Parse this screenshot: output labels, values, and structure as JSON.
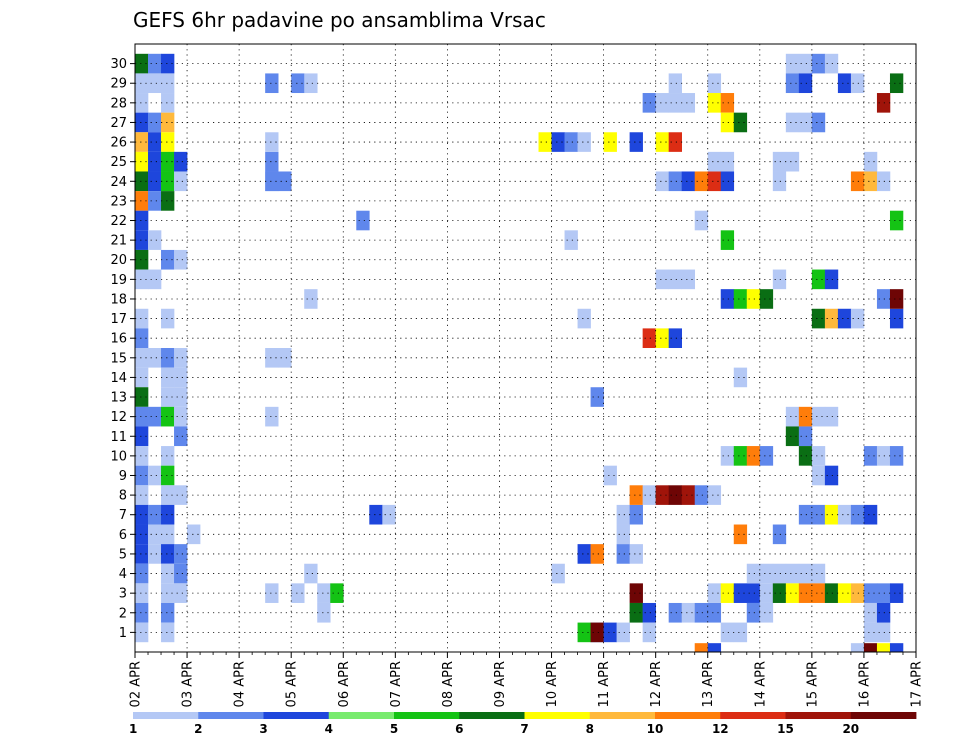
{
  "chart_data": {
    "type": "heatmap",
    "title": "GEFS 6hr padavine po ansamblima Vrsac",
    "x_tick_labels": [
      "02 APR",
      "03 APR",
      "04 APR",
      "05 APR",
      "06 APR",
      "07 APR",
      "08 APR",
      "09 APR",
      "10 APR",
      "11 APR",
      "12 APR",
      "13 APR",
      "14 APR",
      "15 APR",
      "16 APR",
      "17 APR"
    ],
    "x_range": [
      "02 APR 00z",
      "17 APR 00z"
    ],
    "time_step_hours": 6,
    "y_tick_labels": [
      "1",
      "2",
      "3",
      "4",
      "5",
      "6",
      "7",
      "8",
      "9",
      "10",
      "11",
      "12",
      "13",
      "14",
      "15",
      "16",
      "17",
      "18",
      "19",
      "20",
      "21",
      "22",
      "23",
      "24",
      "25",
      "26",
      "27",
      "28",
      "29",
      "30"
    ],
    "y_range": [
      0,
      30
    ],
    "grid": "dotted",
    "colorbar": {
      "placement": "bottom",
      "labels": [
        "1",
        "2",
        "3",
        "4",
        "5",
        "6",
        "7",
        "8",
        "10",
        "12",
        "15",
        "20"
      ],
      "colors": [
        "#b4c8f5",
        "#5f87ec",
        "#1e46dc",
        "#78eb6e",
        "#14c314",
        "#0a6e14",
        "#ffff00",
        "#ffb93c",
        "#ff7d0a",
        "#dc2d14",
        "#a0140a",
        "#6e0505"
      ]
    },
    "cells": [
      {
        "x": 0,
        "y": 30,
        "v": 6
      },
      {
        "x": 1,
        "y": 30,
        "v": 2
      },
      {
        "x": 2,
        "y": 30,
        "v": 3
      },
      {
        "x": 0,
        "y": 29,
        "v": 1
      },
      {
        "x": 1,
        "y": 29,
        "v": 1
      },
      {
        "x": 2,
        "y": 29,
        "v": 1
      },
      {
        "x": 0,
        "y": 28,
        "v": 1
      },
      {
        "x": 2,
        "y": 28,
        "v": 1
      },
      {
        "x": 0,
        "y": 27,
        "v": 3
      },
      {
        "x": 1,
        "y": 27,
        "v": 2
      },
      {
        "x": 2,
        "y": 27,
        "v": 8
      },
      {
        "x": 0,
        "y": 26,
        "v": 8
      },
      {
        "x": 1,
        "y": 26,
        "v": 3
      },
      {
        "x": 2,
        "y": 26,
        "v": 7
      },
      {
        "x": 0,
        "y": 25,
        "v": 7
      },
      {
        "x": 1,
        "y": 25,
        "v": 3
      },
      {
        "x": 2,
        "y": 25,
        "v": 5
      },
      {
        "x": 3,
        "y": 25,
        "v": 3
      },
      {
        "x": 0,
        "y": 24,
        "v": 6
      },
      {
        "x": 1,
        "y": 24,
        "v": 3
      },
      {
        "x": 2,
        "y": 24,
        "v": 5
      },
      {
        "x": 3,
        "y": 24,
        "v": 1
      },
      {
        "x": 0,
        "y": 23,
        "v": 10
      },
      {
        "x": 1,
        "y": 23,
        "v": 2
      },
      {
        "x": 2,
        "y": 23,
        "v": 6
      },
      {
        "x": 0,
        "y": 22,
        "v": 3
      },
      {
        "x": 0,
        "y": 21,
        "v": 3
      },
      {
        "x": 1,
        "y": 21,
        "v": 1
      },
      {
        "x": 0,
        "y": 20,
        "v": 6
      },
      {
        "x": 2,
        "y": 20,
        "v": 2
      },
      {
        "x": 3,
        "y": 20,
        "v": 1
      },
      {
        "x": 0,
        "y": 19,
        "v": 1
      },
      {
        "x": 1,
        "y": 19,
        "v": 1
      },
      {
        "x": 0,
        "y": 17,
        "v": 1
      },
      {
        "x": 2,
        "y": 17,
        "v": 1
      },
      {
        "x": 0,
        "y": 16,
        "v": 2
      },
      {
        "x": 0,
        "y": 15,
        "v": 1
      },
      {
        "x": 1,
        "y": 15,
        "v": 1
      },
      {
        "x": 2,
        "y": 15,
        "v": 2
      },
      {
        "x": 3,
        "y": 15,
        "v": 1
      },
      {
        "x": 0,
        "y": 14,
        "v": 1
      },
      {
        "x": 2,
        "y": 14,
        "v": 1
      },
      {
        "x": 3,
        "y": 14,
        "v": 1
      },
      {
        "x": 0,
        "y": 13,
        "v": 6
      },
      {
        "x": 2,
        "y": 13,
        "v": 1
      },
      {
        "x": 3,
        "y": 13,
        "v": 1
      },
      {
        "x": 0,
        "y": 12,
        "v": 2
      },
      {
        "x": 1,
        "y": 12,
        "v": 2
      },
      {
        "x": 2,
        "y": 12,
        "v": 5
      },
      {
        "x": 3,
        "y": 12,
        "v": 1
      },
      {
        "x": 0,
        "y": 11,
        "v": 3
      },
      {
        "x": 3,
        "y": 11,
        "v": 2
      },
      {
        "x": 0,
        "y": 10,
        "v": 1
      },
      {
        "x": 2,
        "y": 10,
        "v": 1
      },
      {
        "x": 0,
        "y": 9,
        "v": 2
      },
      {
        "x": 1,
        "y": 9,
        "v": 1
      },
      {
        "x": 2,
        "y": 9,
        "v": 5
      },
      {
        "x": 0,
        "y": 8,
        "v": 1
      },
      {
        "x": 2,
        "y": 8,
        "v": 1
      },
      {
        "x": 3,
        "y": 8,
        "v": 1
      },
      {
        "x": 0,
        "y": 7,
        "v": 3
      },
      {
        "x": 1,
        "y": 7,
        "v": 2
      },
      {
        "x": 2,
        "y": 7,
        "v": 3
      },
      {
        "x": 0,
        "y": 6,
        "v": 3
      },
      {
        "x": 1,
        "y": 6,
        "v": 1
      },
      {
        "x": 2,
        "y": 6,
        "v": 1
      },
      {
        "x": 4,
        "y": 6,
        "v": 1
      },
      {
        "x": 0,
        "y": 5,
        "v": 3
      },
      {
        "x": 1,
        "y": 5,
        "v": 1
      },
      {
        "x": 2,
        "y": 5,
        "v": 3
      },
      {
        "x": 3,
        "y": 5,
        "v": 2
      },
      {
        "x": 0,
        "y": 4,
        "v": 2
      },
      {
        "x": 2,
        "y": 4,
        "v": 1
      },
      {
        "x": 3,
        "y": 4,
        "v": 2
      },
      {
        "x": 0,
        "y": 3,
        "v": 1
      },
      {
        "x": 2,
        "y": 3,
        "v": 1
      },
      {
        "x": 3,
        "y": 3,
        "v": 1
      },
      {
        "x": 0,
        "y": 2,
        "v": 2
      },
      {
        "x": 2,
        "y": 2,
        "v": 2
      },
      {
        "x": 0,
        "y": 1,
        "v": 1
      },
      {
        "x": 2,
        "y": 1,
        "v": 1
      },
      {
        "x": 10,
        "y": 24,
        "v": 1
      },
      {
        "x": 11,
        "y": 24,
        "v": 2
      },
      {
        "x": 10,
        "y": 15,
        "v": 1
      },
      {
        "x": 11,
        "y": 15,
        "v": 1
      },
      {
        "x": 10,
        "y": 29,
        "v": 2
      },
      {
        "x": 10,
        "y": 25,
        "v": 2
      },
      {
        "x": 10,
        "y": 26,
        "v": 1
      },
      {
        "x": 10,
        "y": 24,
        "v": 2
      },
      {
        "x": 10,
        "y": 12,
        "v": 1
      },
      {
        "x": 10,
        "y": 3,
        "v": 1
      },
      {
        "x": 13,
        "y": 18,
        "v": 1
      },
      {
        "x": 13,
        "y": 4,
        "v": 1
      },
      {
        "x": 12,
        "y": 3,
        "v": 1
      },
      {
        "x": 12,
        "y": 29,
        "v": 2
      },
      {
        "x": 13,
        "y": 29,
        "v": 1
      },
      {
        "x": 14,
        "y": 3,
        "v": 1
      },
      {
        "x": 15,
        "y": 3,
        "v": 5
      },
      {
        "x": 14,
        "y": 2,
        "v": 1
      },
      {
        "x": 17,
        "y": 22,
        "v": 2
      },
      {
        "x": 18,
        "y": 7,
        "v": 3
      },
      {
        "x": 19,
        "y": 7,
        "v": 1
      },
      {
        "x": 31,
        "y": 26,
        "v": 7
      },
      {
        "x": 32,
        "y": 26,
        "v": 3
      },
      {
        "x": 33,
        "y": 26,
        "v": 2
      },
      {
        "x": 34,
        "y": 26,
        "v": 1
      },
      {
        "x": 36,
        "y": 26,
        "v": 7
      },
      {
        "x": 38,
        "y": 26,
        "v": 3
      },
      {
        "x": 40,
        "y": 26,
        "v": 7
      },
      {
        "x": 41,
        "y": 26,
        "v": 14
      },
      {
        "x": 33,
        "y": 21,
        "v": 1
      },
      {
        "x": 32,
        "y": 4,
        "v": 1
      },
      {
        "x": 34,
        "y": 17,
        "v": 1
      },
      {
        "x": 35,
        "y": 13,
        "v": 2
      },
      {
        "x": 35,
        "y": 1,
        "v": 2
      },
      {
        "x": 34,
        "y": 1,
        "v": 5
      },
      {
        "x": 35,
        "y": 1,
        "v": 20
      },
      {
        "x": 36,
        "y": 1,
        "v": 3
      },
      {
        "x": 37,
        "y": 1,
        "v": 1
      },
      {
        "x": 34,
        "y": 5,
        "v": 3
      },
      {
        "x": 35,
        "y": 5,
        "v": 10
      },
      {
        "x": 36,
        "y": 9,
        "v": 1
      },
      {
        "x": 37,
        "y": 7,
        "v": 1
      },
      {
        "x": 38,
        "y": 7,
        "v": 2
      },
      {
        "x": 37,
        "y": 6,
        "v": 1
      },
      {
        "x": 37,
        "y": 5,
        "v": 2
      },
      {
        "x": 38,
        "y": 5,
        "v": 1
      },
      {
        "x": 38,
        "y": 3,
        "v": 20
      },
      {
        "x": 38,
        "y": 2,
        "v": 6
      },
      {
        "x": 39,
        "y": 2,
        "v": 3
      },
      {
        "x": 39,
        "y": 1,
        "v": 1
      },
      {
        "x": 38,
        "y": 8,
        "v": 10
      },
      {
        "x": 39,
        "y": 8,
        "v": 1
      },
      {
        "x": 40,
        "y": 8,
        "v": 15
      },
      {
        "x": 41,
        "y": 8,
        "v": 20
      },
      {
        "x": 42,
        "y": 8,
        "v": 15
      },
      {
        "x": 43,
        "y": 8,
        "v": 2
      },
      {
        "x": 44,
        "y": 8,
        "v": 1
      },
      {
        "x": 39,
        "y": 16,
        "v": 12
      },
      {
        "x": 40,
        "y": 16,
        "v": 7
      },
      {
        "x": 41,
        "y": 16,
        "v": 3
      },
      {
        "x": 39,
        "y": 28,
        "v": 2
      },
      {
        "x": 40,
        "y": 28,
        "v": 1
      },
      {
        "x": 41,
        "y": 28,
        "v": 1
      },
      {
        "x": 42,
        "y": 28,
        "v": 1
      },
      {
        "x": 41,
        "y": 29,
        "v": 1
      },
      {
        "x": 40,
        "y": 19,
        "v": 1
      },
      {
        "x": 41,
        "y": 19,
        "v": 1
      },
      {
        "x": 42,
        "y": 19,
        "v": 1
      },
      {
        "x": 40,
        "y": 24,
        "v": 1
      },
      {
        "x": 41,
        "y": 24,
        "v": 2
      },
      {
        "x": 42,
        "y": 24,
        "v": 3
      },
      {
        "x": 43,
        "y": 24,
        "v": 10
      },
      {
        "x": 44,
        "y": 24,
        "v": 12
      },
      {
        "x": 45,
        "y": 24,
        "v": 3
      },
      {
        "x": 41,
        "y": 2,
        "v": 2
      },
      {
        "x": 42,
        "y": 2,
        "v": 1
      },
      {
        "x": 43,
        "y": 2,
        "v": 2
      },
      {
        "x": 44,
        "y": 2,
        "v": 2
      },
      {
        "x": 43,
        "y": 22,
        "v": 1
      },
      {
        "x": 44,
        "y": 29,
        "v": 1
      },
      {
        "x": 44,
        "y": 28,
        "v": 7
      },
      {
        "x": 45,
        "y": 28,
        "v": 10
      },
      {
        "x": 44,
        "y": 25,
        "v": 1
      },
      {
        "x": 45,
        "y": 25,
        "v": 1
      },
      {
        "x": 44,
        "y": 3,
        "v": 1
      },
      {
        "x": 45,
        "y": 3,
        "v": 7
      },
      {
        "x": 46,
        "y": 3,
        "v": 3
      },
      {
        "x": 43,
        "y": 0,
        "v": 10
      },
      {
        "x": 44,
        "y": 0,
        "v": 3
      },
      {
        "x": 45,
        "y": 27,
        "v": 7
      },
      {
        "x": 46,
        "y": 27,
        "v": 6
      },
      {
        "x": 45,
        "y": 18,
        "v": 3
      },
      {
        "x": 46,
        "y": 18,
        "v": 5
      },
      {
        "x": 47,
        "y": 18,
        "v": 7
      },
      {
        "x": 48,
        "y": 18,
        "v": 6
      },
      {
        "x": 45,
        "y": 21,
        "v": 5
      },
      {
        "x": 46,
        "y": 14,
        "v": 1
      },
      {
        "x": 45,
        "y": 10,
        "v": 1
      },
      {
        "x": 46,
        "y": 10,
        "v": 5
      },
      {
        "x": 47,
        "y": 10,
        "v": 10
      },
      {
        "x": 48,
        "y": 10,
        "v": 2
      },
      {
        "x": 46,
        "y": 6,
        "v": 10
      },
      {
        "x": 45,
        "y": 1,
        "v": 1
      },
      {
        "x": 46,
        "y": 1,
        "v": 1
      },
      {
        "x": 47,
        "y": 3,
        "v": 3
      },
      {
        "x": 47,
        "y": 2,
        "v": 2
      },
      {
        "x": 48,
        "y": 2,
        "v": 1
      },
      {
        "x": 47,
        "y": 4,
        "v": 1
      },
      {
        "x": 48,
        "y": 4,
        "v": 1
      },
      {
        "x": 49,
        "y": 4,
        "v": 1
      },
      {
        "x": 50,
        "y": 4,
        "v": 1
      },
      {
        "x": 51,
        "y": 4,
        "v": 1
      },
      {
        "x": 52,
        "y": 4,
        "v": 1
      },
      {
        "x": 48,
        "y": 3,
        "v": 1
      },
      {
        "x": 49,
        "y": 3,
        "v": 6
      },
      {
        "x": 50,
        "y": 3,
        "v": 7
      },
      {
        "x": 51,
        "y": 3,
        "v": 10
      },
      {
        "x": 52,
        "y": 3,
        "v": 10
      },
      {
        "x": 53,
        "y": 3,
        "v": 6
      },
      {
        "x": 54,
        "y": 3,
        "v": 7
      },
      {
        "x": 55,
        "y": 3,
        "v": 8
      },
      {
        "x": 56,
        "y": 3,
        "v": 2
      },
      {
        "x": 57,
        "y": 3,
        "v": 2
      },
      {
        "x": 58,
        "y": 3,
        "v": 3
      },
      {
        "x": 49,
        "y": 24,
        "v": 1
      },
      {
        "x": 49,
        "y": 25,
        "v": 1
      },
      {
        "x": 50,
        "y": 25,
        "v": 1
      },
      {
        "x": 50,
        "y": 30,
        "v": 1
      },
      {
        "x": 51,
        "y": 30,
        "v": 1
      },
      {
        "x": 52,
        "y": 30,
        "v": 2
      },
      {
        "x": 53,
        "y": 30,
        "v": 1
      },
      {
        "x": 50,
        "y": 29,
        "v": 2
      },
      {
        "x": 51,
        "y": 29,
        "v": 3
      },
      {
        "x": 54,
        "y": 29,
        "v": 3
      },
      {
        "x": 55,
        "y": 29,
        "v": 1
      },
      {
        "x": 58,
        "y": 29,
        "v": 6
      },
      {
        "x": 50,
        "y": 27,
        "v": 1
      },
      {
        "x": 51,
        "y": 27,
        "v": 1
      },
      {
        "x": 52,
        "y": 27,
        "v": 2
      },
      {
        "x": 49,
        "y": 19,
        "v": 1
      },
      {
        "x": 52,
        "y": 19,
        "v": 5
      },
      {
        "x": 53,
        "y": 19,
        "v": 3
      },
      {
        "x": 52,
        "y": 17,
        "v": 6
      },
      {
        "x": 53,
        "y": 17,
        "v": 8
      },
      {
        "x": 54,
        "y": 17,
        "v": 3
      },
      {
        "x": 55,
        "y": 17,
        "v": 1
      },
      {
        "x": 58,
        "y": 17,
        "v": 3
      },
      {
        "x": 57,
        "y": 18,
        "v": 2
      },
      {
        "x": 58,
        "y": 18,
        "v": 20
      },
      {
        "x": 50,
        "y": 12,
        "v": 1
      },
      {
        "x": 51,
        "y": 12,
        "v": 10
      },
      {
        "x": 52,
        "y": 12,
        "v": 1
      },
      {
        "x": 53,
        "y": 12,
        "v": 1
      },
      {
        "x": 50,
        "y": 11,
        "v": 6
      },
      {
        "x": 51,
        "y": 11,
        "v": 2
      },
      {
        "x": 51,
        "y": 10,
        "v": 6
      },
      {
        "x": 52,
        "y": 10,
        "v": 1
      },
      {
        "x": 56,
        "y": 10,
        "v": 2
      },
      {
        "x": 57,
        "y": 10,
        "v": 1
      },
      {
        "x": 58,
        "y": 10,
        "v": 2
      },
      {
        "x": 52,
        "y": 9,
        "v": 1
      },
      {
        "x": 53,
        "y": 9,
        "v": 3
      },
      {
        "x": 51,
        "y": 7,
        "v": 2
      },
      {
        "x": 52,
        "y": 7,
        "v": 2
      },
      {
        "x": 53,
        "y": 7,
        "v": 7
      },
      {
        "x": 54,
        "y": 7,
        "v": 1
      },
      {
        "x": 55,
        "y": 7,
        "v": 2
      },
      {
        "x": 56,
        "y": 7,
        "v": 3
      },
      {
        "x": 49,
        "y": 6,
        "v": 2
      },
      {
        "x": 56,
        "y": 1,
        "v": 1
      },
      {
        "x": 57,
        "y": 1,
        "v": 1
      },
      {
        "x": 56,
        "y": 2,
        "v": 1
      },
      {
        "x": 57,
        "y": 2,
        "v": 3
      },
      {
        "x": 55,
        "y": 24,
        "v": 10
      },
      {
        "x": 56,
        "y": 24,
        "v": 8
      },
      {
        "x": 57,
        "y": 24,
        "v": 1
      },
      {
        "x": 56,
        "y": 25,
        "v": 1
      },
      {
        "x": 57,
        "y": 28,
        "v": 15
      },
      {
        "x": 58,
        "y": 22,
        "v": 5
      },
      {
        "x": 55,
        "y": 0,
        "v": 1
      },
      {
        "x": 56,
        "y": 0,
        "v": 20
      },
      {
        "x": 57,
        "y": 0,
        "v": 7
      },
      {
        "x": 58,
        "y": 0,
        "v": 3
      }
    ]
  }
}
